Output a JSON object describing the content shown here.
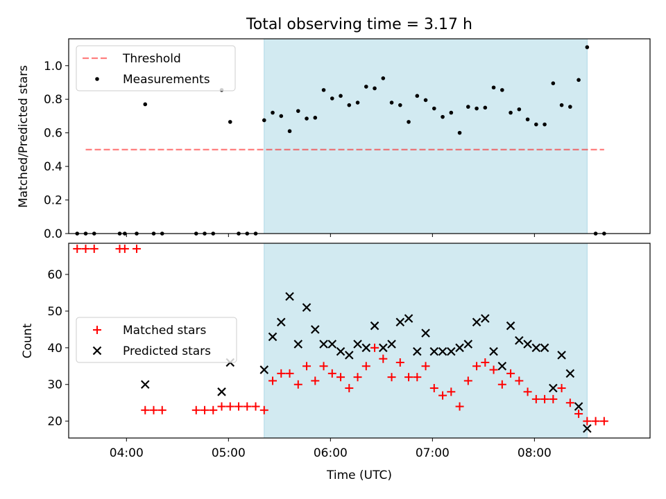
{
  "figure": {
    "title": "Total observing time = 3.17 h"
  },
  "colors": {
    "shade": "#add8e6",
    "threshold": "#ff0000",
    "measurement": "#000000",
    "matched": "#ff0000",
    "predicted": "#000000"
  },
  "chart_data": [
    {
      "type": "scatter",
      "panel": "top",
      "ylabel": "Matched/Predicted stars",
      "xlabel": "",
      "ylim": [
        0,
        1.16
      ],
      "xlim": [
        "03:26",
        "09:08"
      ],
      "yticks": [
        "0.0",
        "0.2",
        "0.4",
        "0.6",
        "0.8",
        "1.0"
      ],
      "shaded_region": [
        "05:21",
        "08:31"
      ],
      "legend": {
        "position": "upper-left",
        "entries": [
          "Threshold",
          "Measurements"
        ]
      },
      "threshold": {
        "name": "Threshold",
        "y": 0.5,
        "x_range": [
          "03:36",
          "08:41"
        ],
        "style": "dashed"
      },
      "series": [
        {
          "name": "Measurements",
          "marker": "dot",
          "x": [
            "03:31",
            "03:36",
            "03:41",
            "03:56",
            "03:59",
            "04:06",
            "04:11",
            "04:16",
            "04:21",
            "04:41",
            "04:46",
            "04:51",
            "04:56",
            "05:01",
            "05:06",
            "05:11",
            "05:16",
            "05:21",
            "05:26",
            "05:31",
            "05:36",
            "05:41",
            "05:46",
            "05:51",
            "05:56",
            "06:01",
            "06:06",
            "06:11",
            "06:16",
            "06:21",
            "06:26",
            "06:31",
            "06:36",
            "06:41",
            "06:46",
            "06:51",
            "06:56",
            "07:01",
            "07:06",
            "07:11",
            "07:16",
            "07:21",
            "07:26",
            "07:31",
            "07:36",
            "07:41",
            "07:46",
            "07:51",
            "07:56",
            "08:01",
            "08:06",
            "08:11",
            "08:16",
            "08:21",
            "08:26",
            "08:31",
            "08:36",
            "08:41"
          ],
          "y": [
            0.0,
            0.0,
            0.0,
            0.0,
            0.0,
            0.0,
            0.77,
            0.0,
            0.0,
            0.0,
            0.0,
            0.0,
            0.855,
            0.665,
            0.0,
            0.0,
            0.0,
            0.675,
            0.72,
            0.7,
            0.61,
            0.73,
            0.685,
            0.69,
            0.855,
            0.805,
            0.82,
            0.765,
            0.78,
            0.875,
            0.865,
            0.925,
            0.78,
            0.765,
            0.665,
            0.82,
            0.795,
            0.745,
            0.695,
            0.72,
            0.6,
            0.755,
            0.745,
            0.75,
            0.87,
            0.855,
            0.72,
            0.74,
            0.68,
            0.65,
            0.65,
            0.895,
            0.765,
            0.755,
            0.915,
            1.11,
            0.0,
            0.0
          ]
        }
      ]
    },
    {
      "type": "scatter",
      "panel": "bottom",
      "ylabel": "Count",
      "xlabel": "Time (UTC)",
      "ylim": [
        15.4,
        68.5
      ],
      "xlim": [
        "03:26",
        "09:08"
      ],
      "yticks": [
        "20",
        "30",
        "40",
        "50",
        "60"
      ],
      "xticks": [
        "04:00",
        "05:00",
        "06:00",
        "07:00",
        "08:00"
      ],
      "shaded_region": [
        "05:21",
        "08:31"
      ],
      "legend": {
        "position": "center-left",
        "entries": [
          "Matched stars",
          "Predicted stars"
        ]
      },
      "series": [
        {
          "name": "Matched stars",
          "marker": "plus",
          "x": [
            "03:31",
            "03:36",
            "03:41",
            "03:56",
            "03:59",
            "04:06",
            "04:11",
            "04:16",
            "04:21",
            "04:41",
            "04:46",
            "04:51",
            "04:56",
            "05:01",
            "05:06",
            "05:11",
            "05:16",
            "05:21",
            "05:26",
            "05:31",
            "05:36",
            "05:41",
            "05:46",
            "05:51",
            "05:56",
            "06:01",
            "06:06",
            "06:11",
            "06:16",
            "06:21",
            "06:26",
            "06:31",
            "06:36",
            "06:41",
            "06:46",
            "06:51",
            "06:56",
            "07:01",
            "07:06",
            "07:11",
            "07:16",
            "07:21",
            "07:26",
            "07:31",
            "07:36",
            "07:41",
            "07:46",
            "07:51",
            "07:56",
            "08:01",
            "08:06",
            "08:11",
            "08:16",
            "08:21",
            "08:26",
            "08:31",
            "08:36",
            "08:41"
          ],
          "y": [
            67,
            67,
            67,
            67,
            67,
            67,
            23,
            23,
            23,
            23,
            23,
            23,
            24,
            24,
            24,
            24,
            24,
            23,
            31,
            33,
            33,
            30,
            35,
            31,
            35,
            33,
            32,
            29,
            32,
            35,
            40,
            37,
            32,
            36,
            32,
            32,
            35,
            29,
            27,
            28,
            24,
            31,
            35,
            36,
            34,
            30,
            33,
            31,
            28,
            26,
            26,
            26,
            29,
            25,
            22,
            20,
            20,
            20
          ]
        },
        {
          "name": "Predicted stars",
          "marker": "x",
          "x": [
            "04:11",
            "04:56",
            "05:01",
            "05:21",
            "05:26",
            "05:31",
            "05:36",
            "05:41",
            "05:46",
            "05:51",
            "05:56",
            "06:01",
            "06:06",
            "06:11",
            "06:16",
            "06:21",
            "06:26",
            "06:31",
            "06:36",
            "06:41",
            "06:46",
            "06:51",
            "06:56",
            "07:01",
            "07:06",
            "07:11",
            "07:16",
            "07:21",
            "07:26",
            "07:31",
            "07:36",
            "07:41",
            "07:46",
            "07:51",
            "07:56",
            "08:01",
            "08:06",
            "08:11",
            "08:16",
            "08:21",
            "08:26",
            "08:31"
          ],
          "y": [
            30,
            28,
            36,
            34,
            43,
            47,
            54,
            41,
            51,
            45,
            41,
            41,
            39,
            38,
            41,
            40,
            46,
            40,
            41,
            47,
            48,
            39,
            44,
            39,
            39,
            39,
            40,
            41,
            47,
            48,
            39,
            35,
            46,
            42,
            41,
            40,
            40,
            29,
            38,
            33,
            24,
            18
          ]
        }
      ]
    }
  ]
}
